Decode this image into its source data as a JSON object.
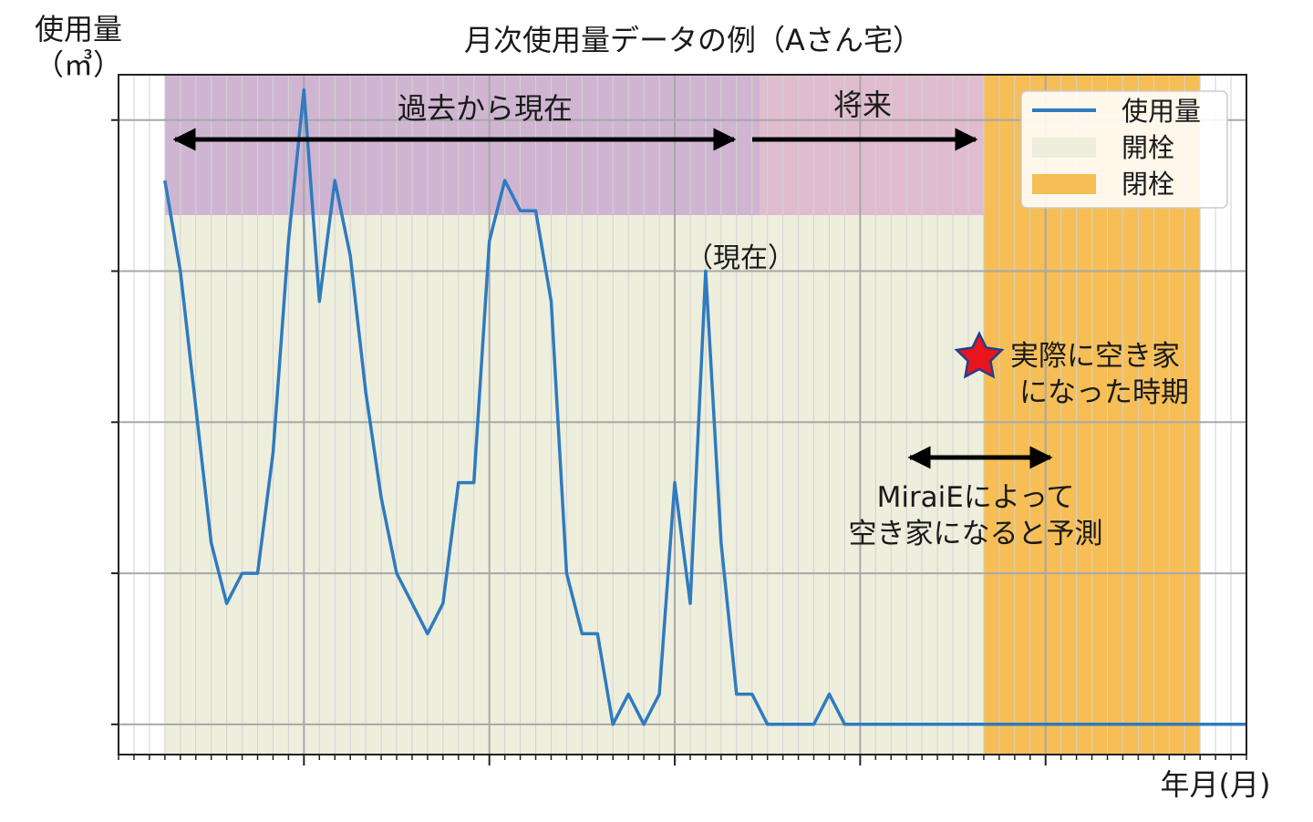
{
  "chart_data": {
    "type": "line",
    "title": "月次使用量データの例（Aさん宅）",
    "ylabel_line1": "使用量",
    "ylabel_line2": "（㎥）",
    "xlabel": "年月(月)",
    "x_unit": "month index",
    "xlim": [
      0,
      73
    ],
    "ylim": [
      -0.2,
      4.3
    ],
    "series": [
      {
        "name": "使用量",
        "color": "#2e7bbf",
        "x": [
          3,
          4,
          5,
          6,
          7,
          8,
          9,
          10,
          11,
          12,
          13,
          14,
          15,
          16,
          17,
          18,
          19,
          20,
          21,
          22,
          23,
          24,
          25,
          26,
          27,
          28,
          29,
          30,
          31,
          32,
          33,
          34,
          35,
          36,
          37,
          38,
          39,
          40,
          41,
          42,
          43,
          44,
          45,
          46,
          47,
          48,
          49,
          50,
          51,
          52,
          53,
          54,
          55,
          56,
          57,
          58,
          59,
          60,
          61,
          62,
          63,
          64,
          65,
          66,
          67,
          68,
          69,
          70,
          71,
          72,
          73
        ],
        "values": [
          3.6,
          3.0,
          2.1,
          1.2,
          0.8,
          1.0,
          1.0,
          1.8,
          3.2,
          4.2,
          2.8,
          3.6,
          3.1,
          2.2,
          1.5,
          1.0,
          0.8,
          0.6,
          0.8,
          1.6,
          1.6,
          3.2,
          3.6,
          3.4,
          3.4,
          2.8,
          1.0,
          0.6,
          0.6,
          0.0,
          0.2,
          0.0,
          0.2,
          1.6,
          0.8,
          3.0,
          1.2,
          0.2,
          0.2,
          0.0,
          0.0,
          0.0,
          0.0,
          0.2,
          0.0,
          0.0,
          0.0,
          0.0,
          0.0,
          0.0,
          0.0,
          0.0,
          0.0,
          0.0,
          0.0,
          0.0,
          0.0,
          0.0,
          0.0,
          0.0,
          0.0,
          0.0,
          0.0,
          0.0,
          0.0,
          0.0,
          0.0,
          0.0,
          0.0,
          0.0,
          0.0
        ]
      }
    ],
    "regions": [
      {
        "name": "開栓",
        "x_start": 3,
        "x_end": 56,
        "color": "#eeeedd"
      },
      {
        "name": "閉栓",
        "x_start": 56,
        "x_end": 70,
        "color": "#f6be55"
      }
    ],
    "bands": [
      {
        "label": "過去から現在",
        "x_start": 3,
        "x_end": 41.5,
        "color": "#c9aad0"
      },
      {
        "label": "将来",
        "x_start": 41.5,
        "x_end": 56,
        "color": "#ddb3cc"
      }
    ],
    "annotations": {
      "current": "（現在）",
      "vacant_line1": "実際に空き家",
      "vacant_line2": "になった時期",
      "predict_line1": "MiraiEによって",
      "predict_line2": "空き家になると予測"
    },
    "grid": true,
    "legend_position": "top-right"
  }
}
